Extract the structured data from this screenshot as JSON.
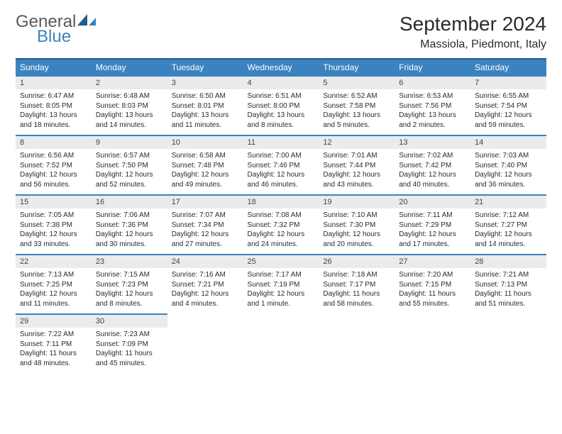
{
  "logo": {
    "general": "General",
    "blue": "Blue",
    "shape_color": "#1e5c8a"
  },
  "header": {
    "month_title": "September 2024",
    "location": "Massiola, Piedmont, Italy"
  },
  "colors": {
    "header_bg": "#3b83c0",
    "header_border": "#1e5c8a",
    "daynum_bg": "#ebebeb"
  },
  "weekdays": [
    "Sunday",
    "Monday",
    "Tuesday",
    "Wednesday",
    "Thursday",
    "Friday",
    "Saturday"
  ],
  "weeks": [
    [
      {
        "n": "1",
        "sr": "Sunrise: 6:47 AM",
        "ss": "Sunset: 8:05 PM",
        "dl": "Daylight: 13 hours and 18 minutes."
      },
      {
        "n": "2",
        "sr": "Sunrise: 6:48 AM",
        "ss": "Sunset: 8:03 PM",
        "dl": "Daylight: 13 hours and 14 minutes."
      },
      {
        "n": "3",
        "sr": "Sunrise: 6:50 AM",
        "ss": "Sunset: 8:01 PM",
        "dl": "Daylight: 13 hours and 11 minutes."
      },
      {
        "n": "4",
        "sr": "Sunrise: 6:51 AM",
        "ss": "Sunset: 8:00 PM",
        "dl": "Daylight: 13 hours and 8 minutes."
      },
      {
        "n": "5",
        "sr": "Sunrise: 6:52 AM",
        "ss": "Sunset: 7:58 PM",
        "dl": "Daylight: 13 hours and 5 minutes."
      },
      {
        "n": "6",
        "sr": "Sunrise: 6:53 AM",
        "ss": "Sunset: 7:56 PM",
        "dl": "Daylight: 13 hours and 2 minutes."
      },
      {
        "n": "7",
        "sr": "Sunrise: 6:55 AM",
        "ss": "Sunset: 7:54 PM",
        "dl": "Daylight: 12 hours and 59 minutes."
      }
    ],
    [
      {
        "n": "8",
        "sr": "Sunrise: 6:56 AM",
        "ss": "Sunset: 7:52 PM",
        "dl": "Daylight: 12 hours and 56 minutes."
      },
      {
        "n": "9",
        "sr": "Sunrise: 6:57 AM",
        "ss": "Sunset: 7:50 PM",
        "dl": "Daylight: 12 hours and 52 minutes."
      },
      {
        "n": "10",
        "sr": "Sunrise: 6:58 AM",
        "ss": "Sunset: 7:48 PM",
        "dl": "Daylight: 12 hours and 49 minutes."
      },
      {
        "n": "11",
        "sr": "Sunrise: 7:00 AM",
        "ss": "Sunset: 7:46 PM",
        "dl": "Daylight: 12 hours and 46 minutes."
      },
      {
        "n": "12",
        "sr": "Sunrise: 7:01 AM",
        "ss": "Sunset: 7:44 PM",
        "dl": "Daylight: 12 hours and 43 minutes."
      },
      {
        "n": "13",
        "sr": "Sunrise: 7:02 AM",
        "ss": "Sunset: 7:42 PM",
        "dl": "Daylight: 12 hours and 40 minutes."
      },
      {
        "n": "14",
        "sr": "Sunrise: 7:03 AM",
        "ss": "Sunset: 7:40 PM",
        "dl": "Daylight: 12 hours and 36 minutes."
      }
    ],
    [
      {
        "n": "15",
        "sr": "Sunrise: 7:05 AM",
        "ss": "Sunset: 7:38 PM",
        "dl": "Daylight: 12 hours and 33 minutes."
      },
      {
        "n": "16",
        "sr": "Sunrise: 7:06 AM",
        "ss": "Sunset: 7:36 PM",
        "dl": "Daylight: 12 hours and 30 minutes."
      },
      {
        "n": "17",
        "sr": "Sunrise: 7:07 AM",
        "ss": "Sunset: 7:34 PM",
        "dl": "Daylight: 12 hours and 27 minutes."
      },
      {
        "n": "18",
        "sr": "Sunrise: 7:08 AM",
        "ss": "Sunset: 7:32 PM",
        "dl": "Daylight: 12 hours and 24 minutes."
      },
      {
        "n": "19",
        "sr": "Sunrise: 7:10 AM",
        "ss": "Sunset: 7:30 PM",
        "dl": "Daylight: 12 hours and 20 minutes."
      },
      {
        "n": "20",
        "sr": "Sunrise: 7:11 AM",
        "ss": "Sunset: 7:29 PM",
        "dl": "Daylight: 12 hours and 17 minutes."
      },
      {
        "n": "21",
        "sr": "Sunrise: 7:12 AM",
        "ss": "Sunset: 7:27 PM",
        "dl": "Daylight: 12 hours and 14 minutes."
      }
    ],
    [
      {
        "n": "22",
        "sr": "Sunrise: 7:13 AM",
        "ss": "Sunset: 7:25 PM",
        "dl": "Daylight: 12 hours and 11 minutes."
      },
      {
        "n": "23",
        "sr": "Sunrise: 7:15 AM",
        "ss": "Sunset: 7:23 PM",
        "dl": "Daylight: 12 hours and 8 minutes."
      },
      {
        "n": "24",
        "sr": "Sunrise: 7:16 AM",
        "ss": "Sunset: 7:21 PM",
        "dl": "Daylight: 12 hours and 4 minutes."
      },
      {
        "n": "25",
        "sr": "Sunrise: 7:17 AM",
        "ss": "Sunset: 7:19 PM",
        "dl": "Daylight: 12 hours and 1 minute."
      },
      {
        "n": "26",
        "sr": "Sunrise: 7:18 AM",
        "ss": "Sunset: 7:17 PM",
        "dl": "Daylight: 11 hours and 58 minutes."
      },
      {
        "n": "27",
        "sr": "Sunrise: 7:20 AM",
        "ss": "Sunset: 7:15 PM",
        "dl": "Daylight: 11 hours and 55 minutes."
      },
      {
        "n": "28",
        "sr": "Sunrise: 7:21 AM",
        "ss": "Sunset: 7:13 PM",
        "dl": "Daylight: 11 hours and 51 minutes."
      }
    ],
    [
      {
        "n": "29",
        "sr": "Sunrise: 7:22 AM",
        "ss": "Sunset: 7:11 PM",
        "dl": "Daylight: 11 hours and 48 minutes."
      },
      {
        "n": "30",
        "sr": "Sunrise: 7:23 AM",
        "ss": "Sunset: 7:09 PM",
        "dl": "Daylight: 11 hours and 45 minutes."
      },
      null,
      null,
      null,
      null,
      null
    ]
  ]
}
